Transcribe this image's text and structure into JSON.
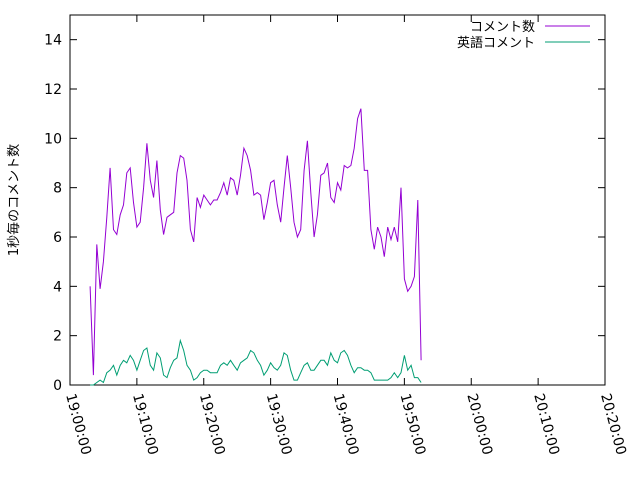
{
  "chart_data": {
    "type": "line",
    "title": "",
    "xlabel": "",
    "ylabel": "1秒毎のコメント数",
    "ylim": [
      0,
      15
    ],
    "xlim": [
      "19:00:00",
      "20:20:00"
    ],
    "yticks": [
      0,
      2,
      4,
      6,
      8,
      10,
      12,
      14
    ],
    "xticks": [
      "19:00:00",
      "19:10:00",
      "19:20:00",
      "19:30:00",
      "19:40:00",
      "19:50:00",
      "20:00:00",
      "20:10:00",
      "20:20:00"
    ],
    "grid": false,
    "legend_position": "top-right",
    "x_step_seconds": 30,
    "x_start": "19:03:00",
    "series": [
      {
        "name": "コメント数",
        "color": "#9400d3",
        "values": [
          4.0,
          0.4,
          5.7,
          3.9,
          5.0,
          6.8,
          8.8,
          6.3,
          6.1,
          6.9,
          7.3,
          8.6,
          8.8,
          7.4,
          6.4,
          6.6,
          8.0,
          9.8,
          8.3,
          7.6,
          9.1,
          7.1,
          6.1,
          6.8,
          6.9,
          7.0,
          8.6,
          9.3,
          9.2,
          8.3,
          6.3,
          5.8,
          7.6,
          7.2,
          7.7,
          7.5,
          7.3,
          7.5,
          7.5,
          7.8,
          8.2,
          7.7,
          8.4,
          8.3,
          7.7,
          8.5,
          9.6,
          9.3,
          8.7,
          7.7,
          7.8,
          7.7,
          6.7,
          7.4,
          8.2,
          8.3,
          7.3,
          6.6,
          8.0,
          9.3,
          8.0,
          6.6,
          6.0,
          6.3,
          8.7,
          9.9,
          7.8,
          6.0,
          6.9,
          8.5,
          8.6,
          9.0,
          7.6,
          7.4,
          8.2,
          7.9,
          8.9,
          8.8,
          8.9,
          9.6,
          10.8,
          11.2,
          8.7,
          8.7,
          6.3,
          5.5,
          6.4,
          6.0,
          5.2,
          6.4,
          5.9,
          6.4,
          5.8,
          8.0,
          4.3,
          3.8,
          4.0,
          4.4,
          7.5,
          1.0
        ]
      },
      {
        "name": "英語コメント",
        "color": "#009e73",
        "values": [
          0.0,
          0.0,
          0.1,
          0.2,
          0.1,
          0.5,
          0.6,
          0.8,
          0.4,
          0.8,
          1.0,
          0.9,
          1.2,
          1.0,
          0.6,
          1.0,
          1.4,
          1.5,
          0.8,
          0.6,
          1.3,
          1.1,
          0.4,
          0.3,
          0.7,
          1.0,
          1.1,
          1.8,
          1.4,
          0.8,
          0.6,
          0.2,
          0.3,
          0.5,
          0.6,
          0.6,
          0.5,
          0.5,
          0.5,
          0.8,
          0.9,
          0.8,
          1.0,
          0.8,
          0.6,
          0.9,
          1.0,
          1.1,
          1.4,
          1.3,
          1.0,
          0.8,
          0.4,
          0.6,
          0.9,
          0.7,
          0.6,
          0.8,
          1.3,
          1.2,
          0.6,
          0.2,
          0.2,
          0.5,
          0.8,
          0.9,
          0.6,
          0.6,
          0.8,
          1.0,
          1.0,
          0.8,
          1.3,
          1.0,
          0.9,
          1.3,
          1.4,
          1.2,
          0.8,
          0.5,
          0.7,
          0.7,
          0.6,
          0.6,
          0.5,
          0.2,
          0.2,
          0.2,
          0.2,
          0.2,
          0.3,
          0.5,
          0.3,
          0.5,
          1.2,
          0.6,
          0.8,
          0.3,
          0.3,
          0.1
        ]
      }
    ]
  }
}
